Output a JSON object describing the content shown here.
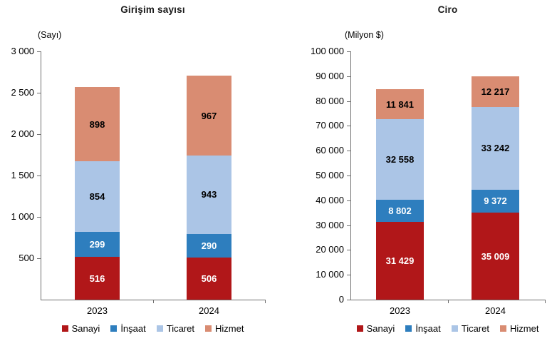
{
  "chart_data": [
    {
      "type": "bar",
      "stacked": true,
      "title": "Girişim sayısı",
      "unit": "(Sayı)",
      "xlabel": "",
      "ylabel": "(Sayı)",
      "categories": [
        "2023",
        "2024"
      ],
      "series": [
        {
          "name": "Sanayi",
          "color": "#B11719",
          "label_color": "#FFFFFF",
          "values": [
            516,
            506
          ]
        },
        {
          "name": "İnşaat",
          "color": "#2E7EBE",
          "label_color": "#FFFFFF",
          "values": [
            299,
            290
          ]
        },
        {
          "name": "Ticaret",
          "color": "#ABC5E6",
          "label_color": "#000000",
          "values": [
            854,
            943
          ]
        },
        {
          "name": "Hizmet",
          "color": "#D98C72",
          "label_color": "#000000",
          "values": [
            898,
            967
          ]
        }
      ],
      "totals": [
        2567,
        2706
      ],
      "ylim": [
        0,
        3000
      ],
      "y_ticks": [
        500,
        1000,
        1500,
        2000,
        2500,
        3000
      ],
      "grid": false,
      "legend_position": "bottom",
      "legend": [
        "Sanayi",
        "İnşaat",
        "Ticaret",
        "Hizmet"
      ]
    },
    {
      "type": "bar",
      "stacked": true,
      "title": "Ciro",
      "unit": "(Milyon $)",
      "xlabel": "",
      "ylabel": "(Milyon $)",
      "categories": [
        "2023",
        "2024"
      ],
      "series": [
        {
          "name": "Sanayi",
          "color": "#B11719",
          "label_color": "#FFFFFF",
          "values": [
            31429,
            35009
          ]
        },
        {
          "name": "İnşaat",
          "color": "#2E7EBE",
          "label_color": "#FFFFFF",
          "values": [
            8802,
            9372
          ]
        },
        {
          "name": "Ticaret",
          "color": "#ABC5E6",
          "label_color": "#000000",
          "values": [
            32558,
            33242
          ]
        },
        {
          "name": "Hizmet",
          "color": "#D98C72",
          "label_color": "#000000",
          "values": [
            11841,
            12217
          ]
        }
      ],
      "totals": [
        84630,
        89840
      ],
      "ylim": [
        0,
        100000
      ],
      "y_ticks": [
        0,
        10000,
        20000,
        30000,
        40000,
        50000,
        60000,
        70000,
        80000,
        90000,
        100000
      ],
      "grid": false,
      "legend_position": "bottom",
      "legend": [
        "Sanayi",
        "İnşaat",
        "Ticaret",
        "Hizmet"
      ]
    }
  ],
  "style": {
    "axis_color": "#6F6F6F",
    "text_color": "#000000",
    "background": "#FFFFFF",
    "number_thousands_separator": " "
  }
}
